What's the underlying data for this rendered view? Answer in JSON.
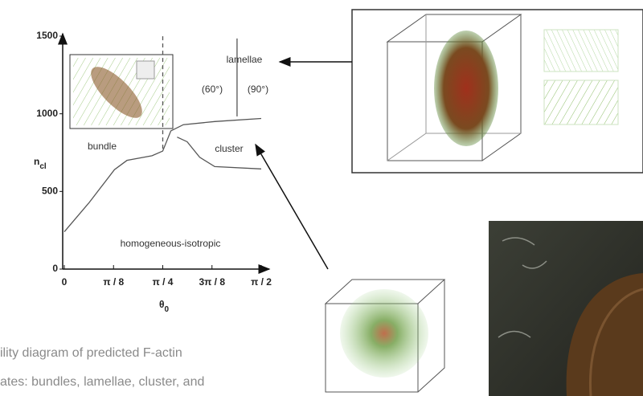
{
  "chart_data": {
    "type": "line",
    "xlabel": {
      "symbol": "θ",
      "subscript": "0"
    },
    "ylabel": {
      "symbol": "n",
      "subscript": "cl"
    },
    "xlim": [
      0,
      1.5708
    ],
    "ylim": [
      0,
      1500
    ],
    "xticks": [
      0,
      {
        "value": 0.3927,
        "label": "π / 8"
      },
      {
        "value": 0.7854,
        "label": "π / 4"
      },
      {
        "value": 1.1781,
        "label": "3π / 8"
      },
      {
        "value": 1.5708,
        "label": "π / 2"
      }
    ],
    "yticks": [
      0,
      500,
      1000,
      1500
    ],
    "series": [
      {
        "color": "#555555",
        "x": [
          0,
          0.2,
          0.4,
          0.5,
          0.7,
          0.785,
          0.85,
          0.95,
          1.2,
          1.5708
        ],
        "values": [
          240,
          430,
          640,
          700,
          730,
          760,
          890,
          930,
          950,
          970
        ]
      },
      {
        "color": "#555555",
        "x": [
          0.9,
          0.98,
          1.08,
          1.2,
          1.5708
        ],
        "values": [
          850,
          820,
          720,
          660,
          645
        ]
      },
      {
        "color": "#555555",
        "x": [
          1.378,
          1.378
        ],
        "values": [
          983,
          1485
        ]
      },
      {
        "color": "#555555",
        "dashed": true,
        "x": [
          0.7854,
          0.7854
        ],
        "values": [
          775,
          1500
        ]
      }
    ],
    "annotations": [
      "lamellae",
      "(60°)",
      "(90°)",
      "bundle",
      "cluster",
      "homogeneous-isotropic"
    ]
  },
  "caption": [
    "ility diagram of predicted F-actin",
    "ates: bundles, lamellae, cluster, and"
  ]
}
